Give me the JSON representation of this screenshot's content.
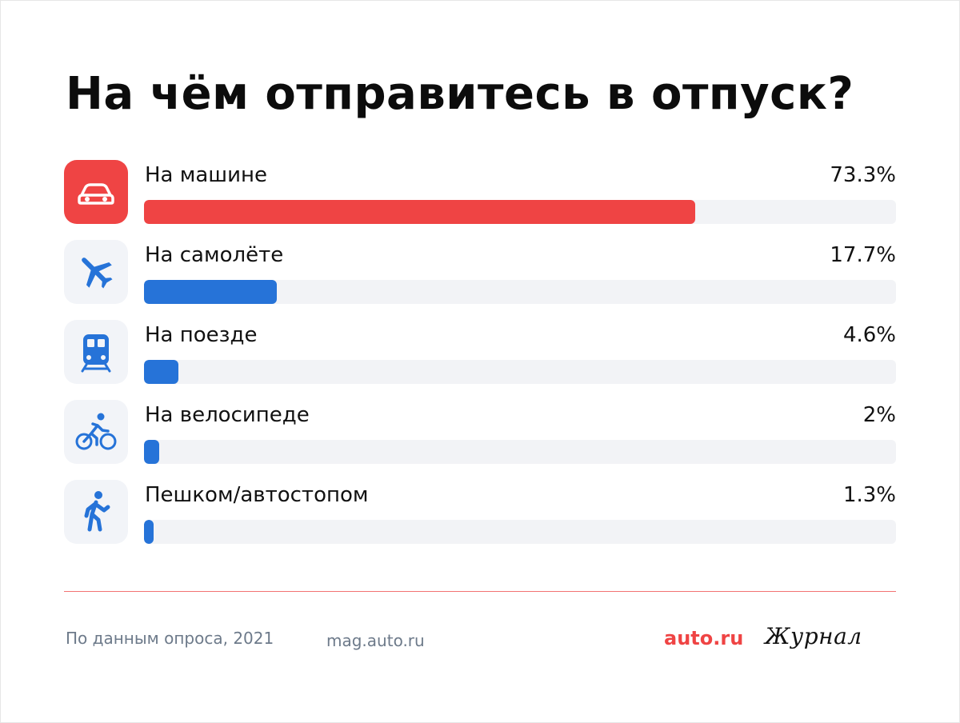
{
  "title": "На чём отправитесь в отпуск?",
  "chart_data": {
    "type": "bar",
    "orientation": "horizontal",
    "title": "На чём отправитесь в отпуск?",
    "categories": [
      "На машине",
      "На самолёте",
      "На поезде",
      "На велосипеде",
      "Пешком/автостопом"
    ],
    "values": [
      73.3,
      17.7,
      4.6,
      2,
      1.3
    ],
    "value_labels": [
      "73.3%",
      "17.7%",
      "4.6%",
      "2%",
      "1.3%"
    ],
    "icons": [
      "car-icon",
      "airplane-icon",
      "train-icon",
      "bicycle-icon",
      "walking-icon"
    ],
    "highlight_index": 0,
    "colors": {
      "highlight": "#ef4444",
      "bar": "#2673d8",
      "track": "#f2f3f6",
      "icon_tile": "#f2f4f8"
    },
    "xlim": [
      0,
      100
    ],
    "grid": false
  },
  "footer": {
    "source": "По данным опроса, 2021",
    "site": "mag.auto.ru",
    "brand_auto": "auto.ru",
    "brand_journal": "Журнал"
  }
}
